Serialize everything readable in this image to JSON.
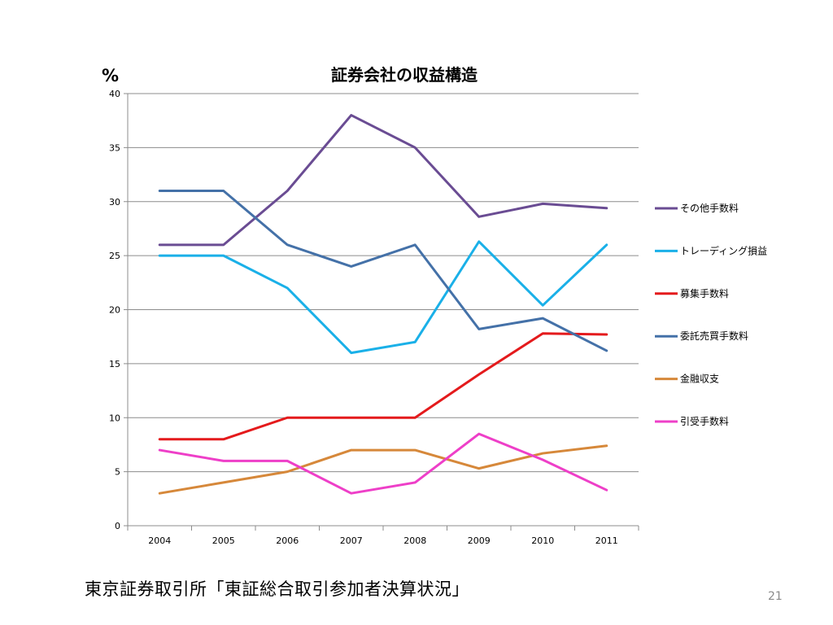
{
  "slide": {
    "source_note": "東京証券取引所「東証総合取引参加者決算状況」",
    "page_number": "21"
  },
  "chart_data": {
    "type": "line",
    "title": "証券会社の収益構造",
    "ylabel": "%",
    "xlabel": "",
    "x": [
      "2004",
      "2005",
      "2006",
      "2007",
      "2008",
      "2009",
      "2010",
      "2011"
    ],
    "ylim": [
      0,
      40
    ],
    "yticks": [
      0,
      5,
      10,
      15,
      20,
      25,
      30,
      35,
      40
    ],
    "grid": true,
    "legend": "right",
    "series": [
      {
        "name": "その他手数料",
        "color": "#6a4c93",
        "values": [
          26,
          26,
          31,
          38,
          35,
          28.6,
          29.8,
          29.4
        ]
      },
      {
        "name": "トレーディング損益",
        "color": "#1ab0e8",
        "values": [
          25,
          25,
          22,
          16,
          17,
          26.3,
          20.4,
          26
        ]
      },
      {
        "name": "募集手数料",
        "color": "#e41a1c",
        "values": [
          8,
          8,
          10,
          10,
          10,
          14,
          17.8,
          17.7
        ]
      },
      {
        "name": "委託売買手数料",
        "color": "#4471a8",
        "values": [
          31,
          31,
          26,
          24,
          26,
          18.2,
          19.2,
          16.2
        ]
      },
      {
        "name": "金融収支",
        "color": "#d6883a",
        "values": [
          3,
          4,
          5,
          7,
          7,
          5.3,
          6.7,
          7.4
        ]
      },
      {
        "name": "引受手数料",
        "color": "#ee3fc8",
        "values": [
          7,
          6,
          6,
          3,
          4,
          8.5,
          6.1,
          3.3
        ]
      }
    ]
  }
}
